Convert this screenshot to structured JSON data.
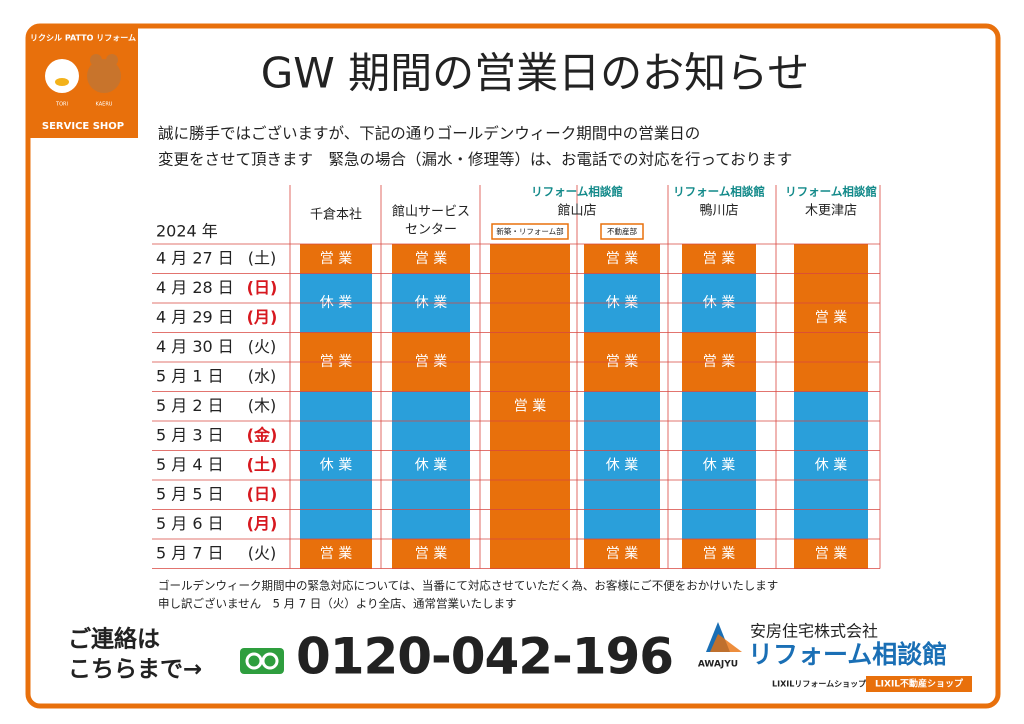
{
  "badge": {
    "top": "リクシル PATTO リフォーム",
    "left_name": "TORI",
    "right_name": "KAERU",
    "bottom": "SERVICE SHOP"
  },
  "title": "GW 期間の営業日のお知らせ",
  "notice": [
    "誠に勝手ではございますが、下記の通りゴールデンウィーク期間中の営業日の",
    "変更をさせて頂きます　緊急の場合（漏水・修理等）は、お電話での対応を行っております"
  ],
  "table": {
    "year": "2024 年",
    "rows": [
      {
        "date": "4 月 27 日",
        "dow": "(土)",
        "holiday": false
      },
      {
        "date": "4 月 28 日",
        "dow": "(日)",
        "holiday": true
      },
      {
        "date": "4 月 29 日",
        "dow": "(月)",
        "holiday": true
      },
      {
        "date": "4 月 30 日",
        "dow": "(火)",
        "holiday": false
      },
      {
        "date": "5 月 1 日",
        "dow": "(水)",
        "holiday": false
      },
      {
        "date": "5 月 2 日",
        "dow": "(木)",
        "holiday": false
      },
      {
        "date": "5 月 3 日",
        "dow": "(金)",
        "holiday": true
      },
      {
        "date": "5 月 4 日",
        "dow": "(土)",
        "holiday": true
      },
      {
        "date": "5 月 5 日",
        "dow": "(日)",
        "holiday": true
      },
      {
        "date": "5 月 6 日",
        "dow": "(月)",
        "holiday": true
      },
      {
        "date": "5 月 7 日",
        "dow": "(火)",
        "holiday": false
      }
    ],
    "colors": {
      "営 業": "#e8700c",
      "休 業": "#2a9fda"
    },
    "headers": [
      {
        "name": [
          "千倉本社"
        ]
      },
      {
        "name": [
          "館山サービス",
          "センター"
        ]
      },
      {
        "brand": "リフォーム相談館",
        "name": [
          "館山店"
        ],
        "subs": [
          "新築・リフォーム部",
          "不動産部"
        ]
      },
      {
        "brand": "リフォーム相談館",
        "name": [
          "鴨川店"
        ]
      },
      {
        "brand": "リフォーム相談館",
        "name": [
          "木更津店"
        ]
      }
    ],
    "columns": [
      {
        "cells": [
          "営 業",
          "休 業",
          "休 業",
          "営 業",
          "営 業",
          "休 業",
          "休 業",
          "休 業",
          "休 業",
          "休 業",
          "営 業"
        ]
      },
      {
        "cells": [
          "営 業",
          "休 業",
          "休 業",
          "営 業",
          "営 業",
          "休 業",
          "休 業",
          "休 業",
          "休 業",
          "休 業",
          "営 業"
        ]
      },
      {
        "cells": [
          "営 業",
          "営 業",
          "営 業",
          "営 業",
          "営 業",
          "営 業",
          "営 業",
          "営 業",
          "営 業",
          "営 業",
          "営 業"
        ]
      },
      {
        "cells": [
          "営 業",
          "休 業",
          "休 業",
          "営 業",
          "営 業",
          "休 業",
          "休 業",
          "休 業",
          "休 業",
          "休 業",
          "営 業"
        ]
      },
      {
        "cells": [
          "営 業",
          "休 業",
          "休 業",
          "営 業",
          "営 業",
          "休 業",
          "休 業",
          "休 業",
          "休 業",
          "休 業",
          "営 業"
        ]
      },
      {
        "cells": [
          "営 業",
          "営 業",
          "営 業",
          "営 業",
          "営 業",
          "休 業",
          "休 業",
          "休 業",
          "休 業",
          "休 業",
          "営 業"
        ]
      }
    ]
  },
  "footnote": [
    "ゴールデンウィーク期間中の緊急対応については、当番にて対応させていただく為、お客様にご不便をおかけいたします",
    "申し訳ございません　5 月 7 日（火）より全店、通常営業いたします"
  ],
  "contact": {
    "line1": "ご連絡は",
    "line2": "こちらまで→",
    "phone": "0120-042-196"
  },
  "company": {
    "mark": "AWAJYU",
    "name": "安房住宅株式会社",
    "brand": "リフォーム相談館",
    "shop1": "LIXILリフォームショップ",
    "shop2": "LIXIL不動産ショップ"
  }
}
